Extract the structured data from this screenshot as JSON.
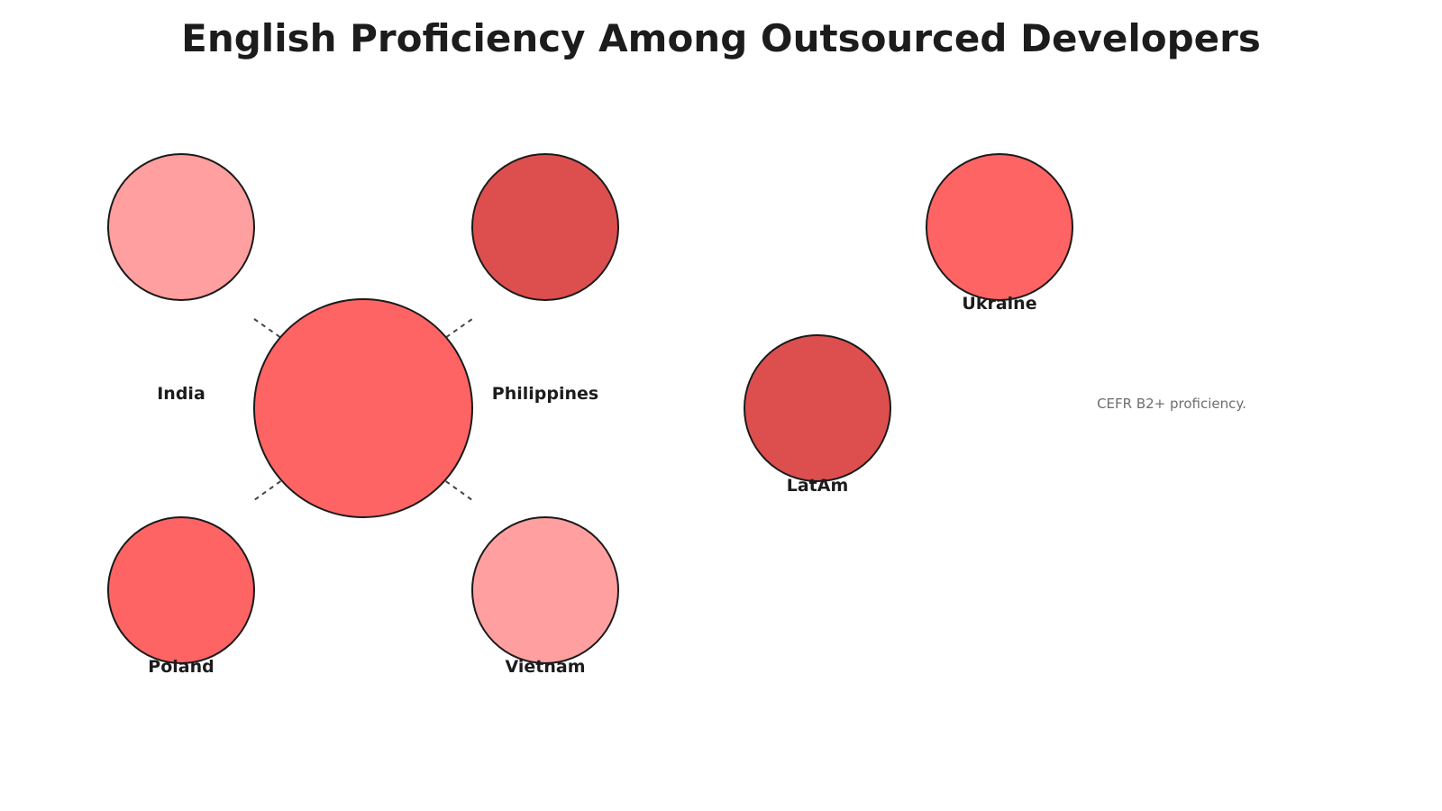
{
  "title": "English Proficiency Among Outsourced Developers",
  "note": "CEFR B2+ proficiency.",
  "colors": {
    "light": "#ff9f9f",
    "medium": "#ff6464",
    "dark": "#dd4f4f",
    "stroke": "#1a1a1a",
    "connector": "#444444"
  },
  "nodes": [
    {
      "id": "hub",
      "label": "",
      "shade": "medium"
    },
    {
      "id": "india",
      "label": "India",
      "shade": "light"
    },
    {
      "id": "philippines",
      "label": "Philippines",
      "shade": "dark"
    },
    {
      "id": "poland",
      "label": "Poland",
      "shade": "medium"
    },
    {
      "id": "vietnam",
      "label": "Vietnam",
      "shade": "light"
    },
    {
      "id": "latam",
      "label": "LatAm",
      "shade": "dark"
    },
    {
      "id": "ukraine",
      "label": "Ukraine",
      "shade": "medium"
    }
  ]
}
